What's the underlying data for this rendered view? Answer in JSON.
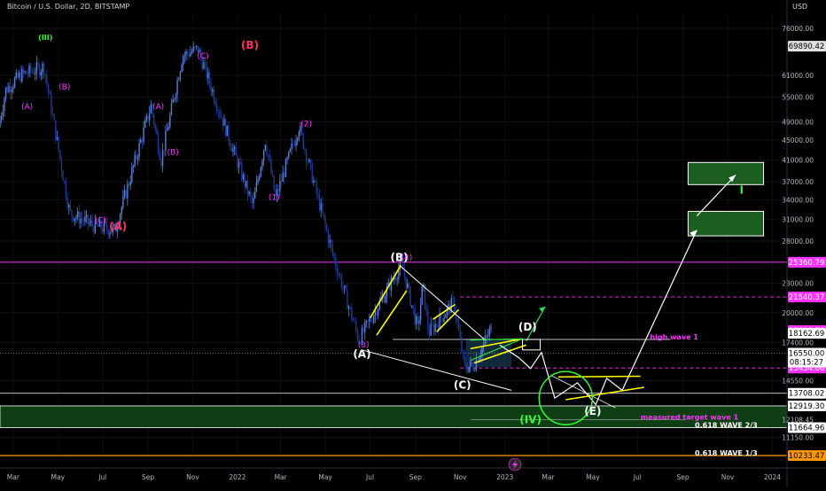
{
  "header": {
    "title": "Bitcoin / U.S. Dollar, 2D, BITSTAMP",
    "currency": "USD"
  },
  "colors": {
    "background": "#000000",
    "candle_up": "#5b7fd6",
    "candle_down": "#1f3a93",
    "wave_purple": "#ff33ff",
    "wave_green": "#33ff33",
    "wave_yellow": "#ffff00",
    "wave_white": "#ffffff",
    "wave_red": "#ff3366",
    "target_box": "#1b5e20",
    "projection_arrow": "#22dd55"
  },
  "chart_data": {
    "type": "candlestick",
    "title": "Bitcoin / U.S. Dollar, 2D, BITSTAMP",
    "y_scale": "log",
    "ylim": [
      10233,
      82000
    ],
    "y_ticks": [
      76000,
      61000,
      55000,
      49000,
      45000,
      41000,
      37000,
      34000,
      31000,
      28000,
      23000,
      20000,
      17400,
      14550,
      12108.45,
      11150
    ],
    "x_ticks": [
      "Mar",
      "May",
      "Jul",
      "Sep",
      "Nov",
      "2022",
      "Mar",
      "May",
      "Jul",
      "Sep",
      "Nov",
      "2023",
      "Mar",
      "May",
      "Jul",
      "Sep",
      "Nov",
      "2024"
    ],
    "x_range": [
      "2021-02-11",
      "2024-01-21"
    ],
    "price_path": [
      [
        "2021-01-19",
        32000
      ],
      [
        "2021-02-21",
        57000
      ],
      [
        "2021-03-13",
        61000
      ],
      [
        "2021-04-14",
        63500
      ],
      [
        "2021-05-19",
        32000
      ],
      [
        "2021-06-22",
        30000
      ],
      [
        "2021-07-20",
        29500
      ],
      [
        "2021-09-07",
        52800
      ],
      [
        "2021-09-21",
        41000
      ],
      [
        "2021-10-20",
        66900
      ],
      [
        "2021-11-10",
        69000
      ],
      [
        "2022-01-24",
        33000
      ],
      [
        "2022-02-10",
        45000
      ],
      [
        "2022-02-24",
        34300
      ],
      [
        "2022-03-28",
        48000
      ],
      [
        "2022-05-12",
        26700
      ],
      [
        "2022-06-18",
        17600
      ],
      [
        "2022-08-15",
        25200
      ],
      [
        "2022-09-06",
        18500
      ],
      [
        "2022-09-13",
        22800
      ],
      [
        "2022-09-21",
        18200
      ],
      [
        "2022-10-25",
        21000
      ],
      [
        "2022-11-09",
        15500
      ],
      [
        "2022-11-21",
        15600
      ],
      [
        "2022-12-14",
        18398.5
      ]
    ],
    "current_price": 16550.0,
    "countdown": "08:15:27",
    "price_labels": [
      {
        "text": "69890.42",
        "price": 69890.42
      },
      {
        "text": "25360.79",
        "price": 25360.79
      },
      {
        "text": "21540.37",
        "price": 21540.37
      },
      {
        "text": "18398.50",
        "price": 18398.5
      },
      {
        "text": "18162.69",
        "price": 18162.69
      },
      {
        "text": "15434.66",
        "price": 15434.66
      },
      {
        "text": "13708.02",
        "price": 13708.02
      },
      {
        "text": "12919.30",
        "price": 12919.3
      },
      {
        "text": "11664.96",
        "price": 11664.96
      },
      {
        "text": "10233.47",
        "price": 10233.47
      }
    ],
    "annotations": [
      {
        "text": "(III)",
        "x": "2021-04-14",
        "y": 72000,
        "color": "wave_green"
      },
      {
        "text": "(B)",
        "x": "2022-01-18",
        "y": 69000,
        "color": "wave_red"
      },
      {
        "text": "(A)",
        "x": "2021-07-22",
        "y": 29500,
        "color": "wave_red"
      },
      {
        "text": "(IV)",
        "x": "2023-02-05",
        "y": 11900,
        "color": "wave_green"
      },
      {
        "text": "(B)",
        "x": "2022-08-10",
        "y": 25500,
        "color": "wave_white"
      },
      {
        "text": "(A)",
        "x": "2022-06-20",
        "y": 16200,
        "color": "wave_white"
      },
      {
        "text": "(C)",
        "x": "2022-11-04",
        "y": 14000,
        "color": "wave_white"
      },
      {
        "text": "(D)",
        "x": "2023-02-01",
        "y": 18400,
        "color": "wave_white"
      },
      {
        "text": "(E)",
        "x": "2023-05-01",
        "y": 12400,
        "color": "wave_white"
      },
      {
        "text": "I",
        "x": "2023-11-20",
        "y": 35000,
        "color": "wave_green"
      },
      {
        "text": "high wave 1",
        "x": "2023-08-20",
        "y": 17650,
        "color": "wave_purple"
      },
      {
        "text": "measured target wave 1",
        "x": "2023-09-10",
        "y": 12108.45,
        "color": "wave_purple"
      },
      {
        "text": "0.618 WAVE 2/3",
        "x": "2023-10-30",
        "y": 11664.96,
        "color": "wave_white"
      },
      {
        "text": "0.618 WAVE 1/3",
        "x": "2023-10-30",
        "y": 10233.47,
        "color": "wave_white"
      }
    ],
    "target_zones": [
      {
        "from": "2023-09-08",
        "to": "2023-12-20",
        "y0": 36500,
        "y1": 40500
      },
      {
        "from": "2023-09-08",
        "to": "2023-12-20",
        "y0": 28700,
        "y1": 32200
      }
    ],
    "support_zone": {
      "y0": 11664.96,
      "y1": 12919.3
    }
  }
}
